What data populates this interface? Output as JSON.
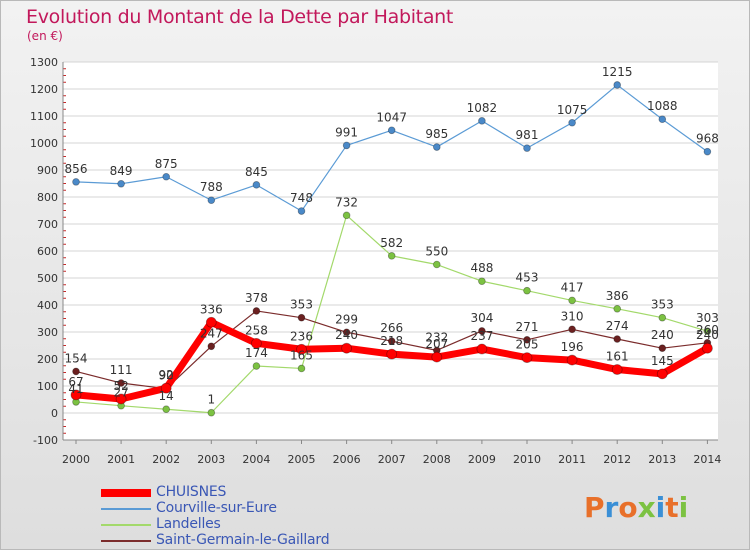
{
  "chart_data": {
    "type": "line",
    "title": "Evolution du Montant de la Dette par Habitant",
    "subtitle": "(en €)",
    "x": [
      2000,
      2001,
      2002,
      2003,
      2004,
      2005,
      2006,
      2007,
      2008,
      2009,
      2010,
      2011,
      2012,
      2013,
      2014
    ],
    "ylim": [
      -100,
      1300
    ],
    "yticks": [
      -100,
      0,
      100,
      200,
      300,
      400,
      500,
      600,
      700,
      800,
      900,
      1000,
      1100,
      1200,
      1300
    ],
    "grid": "horizontal",
    "legend_position": "bottom-left",
    "series": [
      {
        "name": "Courville-sur-Eure",
        "color": "#5b9bd5",
        "point_color": "#4a89c8",
        "width": 1.2,
        "values": [
          856,
          849,
          875,
          788,
          845,
          748,
          991,
          1047,
          985,
          1082,
          981,
          1075,
          1215,
          1088,
          968
        ],
        "labels": [
          "856",
          "849",
          "875",
          "788",
          "845",
          "748",
          "991",
          "1047",
          "985",
          "1082",
          "981",
          "1075",
          "1215",
          "1088",
          "968"
        ]
      },
      {
        "name": "Landelles",
        "color": "#a3d96b",
        "point_color": "#7cc242",
        "width": 1.2,
        "values": [
          41,
          27,
          14,
          1,
          174,
          165,
          732,
          582,
          550,
          488,
          453,
          417,
          386,
          353,
          303
        ],
        "labels": [
          "41",
          "27",
          "14",
          "1",
          "174",
          "165",
          "732",
          "582",
          "550",
          "488",
          "453",
          "417",
          "386",
          "353",
          "303"
        ]
      },
      {
        "name": "Saint-Germain-le-Gaillard",
        "color": "#7b2c2c",
        "point_color": "#6b2020",
        "width": 1.2,
        "values": [
          154,
          111,
          90,
          247,
          378,
          353,
          299,
          266,
          232,
          304,
          271,
          310,
          274,
          240,
          260
        ],
        "labels": [
          "154",
          "111",
          "90",
          "247",
          "378",
          "353",
          "299",
          "266",
          "232",
          "304",
          "271",
          "310",
          "274",
          "240",
          "260"
        ]
      },
      {
        "name": "CHUISNES",
        "color": "#ff0000",
        "point_color": "#ff0000",
        "width": 7,
        "values": [
          67,
          52,
          92,
          336,
          258,
          236,
          240,
          218,
          207,
          237,
          205,
          196,
          161,
          145,
          240
        ],
        "labels": [
          "67",
          "52",
          "92",
          "336",
          "258",
          "236",
          "240",
          "218",
          "207",
          "237",
          "205",
          "196",
          "161",
          "145",
          "240"
        ]
      }
    ]
  },
  "legend": {
    "items": [
      {
        "label": "CHUISNES",
        "color": "#ff0000"
      },
      {
        "label": "Courville-sur-Eure",
        "color": "#5b9bd5"
      },
      {
        "label": "Landelles",
        "color": "#a3d96b"
      },
      {
        "label": "Saint-Germain-le-Gaillard",
        "color": "#7b2c2c"
      }
    ]
  },
  "logo": {
    "text": "Proxiti",
    "colors": [
      "#e8702a",
      "#3a8fd6",
      "#e8702a",
      "#7cc242",
      "#3a8fd6",
      "#e8702a",
      "#7cc242"
    ]
  }
}
